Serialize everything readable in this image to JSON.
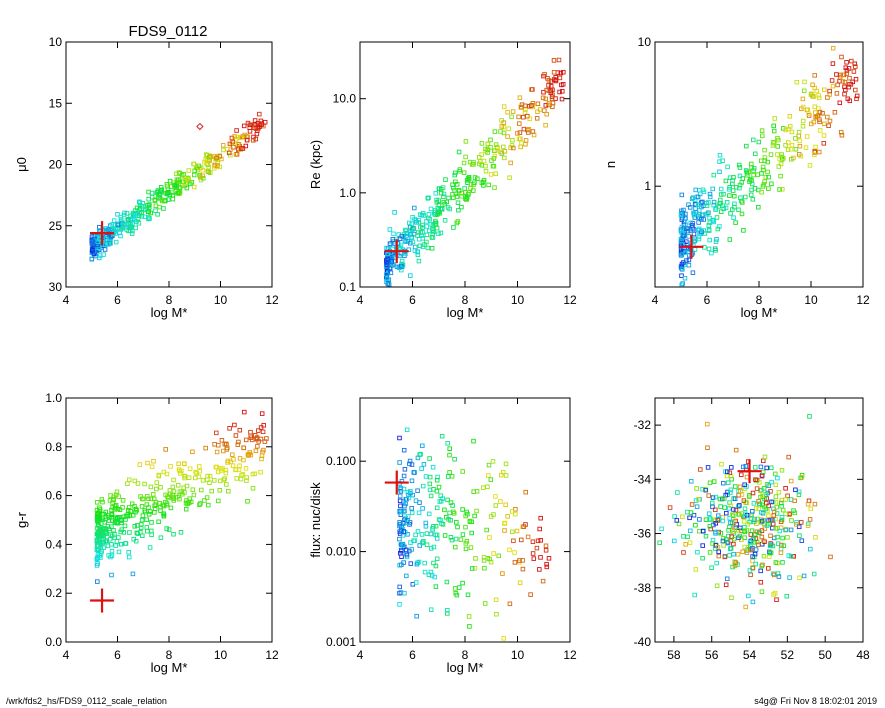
{
  "title": "FDS9_0112",
  "footer_left": "/wrk/fds2_hs/FDS9_0112_scale_relation",
  "footer_right": "s4g@  Fri Nov  8 18:02:01 2019",
  "colors": {
    "axis": "#000000",
    "marker": "#dd1111"
  },
  "chart_data": [
    {
      "id": "p1",
      "type": "scatter",
      "xlabel": "log M*",
      "ylabel": "μ0",
      "xlim": [
        4,
        12
      ],
      "ylim": [
        10,
        30
      ],
      "yreversed": true,
      "ylog": false,
      "xticks": [
        4,
        6,
        8,
        10,
        12
      ],
      "yticks": [
        10,
        15,
        20,
        25,
        30
      ],
      "marker": {
        "x": 5.4,
        "y": 25.6
      },
      "cluster": {
        "n": 420,
        "xr": [
          5.0,
          11.8
        ],
        "y0": 26.0,
        "slope": -1.5,
        "xref": 5.5,
        "spread": 1.4
      },
      "diamonds": [
        {
          "x": 9.2,
          "y": 16.9
        }
      ]
    },
    {
      "id": "p2",
      "type": "scatter",
      "xlabel": "log M*",
      "ylabel": "Re (kpc)",
      "xlim": [
        4,
        12
      ],
      "ylim": [
        0.1,
        40
      ],
      "ylog": true,
      "xticks": [
        4,
        6,
        8,
        10,
        12
      ],
      "yticks": [
        0.1,
        1.0,
        10.0
      ],
      "yticklabels": [
        "0.1",
        "1.0",
        "10.0"
      ],
      "marker": {
        "x": 5.4,
        "y": 0.24
      },
      "cluster": {
        "n": 420,
        "xr": [
          5.0,
          11.8
        ],
        "y0": -0.65,
        "slope": 0.3,
        "xref": 5.5,
        "spread": 0.45,
        "log": true
      }
    },
    {
      "id": "p3",
      "type": "scatter",
      "xlabel": "log M*",
      "ylabel": "n",
      "xlim": [
        4,
        12
      ],
      "ylim": [
        0.2,
        10
      ],
      "ylog": true,
      "xticks": [
        4,
        6,
        8,
        10,
        12
      ],
      "yticks": [
        1,
        10
      ],
      "yticklabels": [
        "1",
        "10"
      ],
      "marker": {
        "x": 5.4,
        "y": 0.38
      },
      "cluster": {
        "n": 400,
        "xr": [
          5.0,
          11.8
        ],
        "y0": -0.3,
        "slope": 0.17,
        "xref": 5.5,
        "spread": 0.4,
        "log": true
      }
    },
    {
      "id": "p4",
      "type": "scatter",
      "xlabel": "log M*",
      "ylabel": "g-r",
      "xlim": [
        4,
        12
      ],
      "ylim": [
        0.0,
        1.0
      ],
      "ylog": false,
      "xticks": [
        4,
        6,
        8,
        10,
        12
      ],
      "yticks": [
        0.0,
        0.2,
        0.4,
        0.6,
        0.8,
        1.0
      ],
      "yticklabels": [
        "0.0",
        "0.2",
        "0.4",
        "0.6",
        "0.8",
        "1.0"
      ],
      "marker": {
        "x": 5.4,
        "y": 0.17
      },
      "cluster": {
        "n": 420,
        "xr": [
          5.2,
          11.8
        ],
        "y0": 0.45,
        "slope": 0.055,
        "xref": 5.5,
        "spread": 0.22
      },
      "colorByY": true
    },
    {
      "id": "p5",
      "type": "scatter",
      "xlabel": "log M*",
      "ylabel": "flux: nuc/disk",
      "xlim": [
        4,
        12
      ],
      "ylim": [
        0.001,
        0.5
      ],
      "ylog": true,
      "xticks": [
        4,
        6,
        8,
        10,
        12
      ],
      "yticks": [
        0.001,
        0.01,
        0.1
      ],
      "yticklabels": [
        "0.001",
        "0.010",
        "0.100"
      ],
      "marker": {
        "x": 5.4,
        "y": 0.058
      },
      "cluster": {
        "n": 300,
        "xr": [
          5.5,
          11.2
        ],
        "y0": -1.6,
        "slope": -0.05,
        "xref": 5.5,
        "spread": 1.3,
        "log": true
      },
      "starsymbols": true
    },
    {
      "id": "p6",
      "type": "scatter",
      "xlabel": "",
      "ylabel": "",
      "xlim": [
        59,
        48
      ],
      "ylim": [
        -40,
        -31
      ],
      "ylog": false,
      "xticks": [
        58,
        56,
        54,
        52,
        50,
        48
      ],
      "yticks": [
        -40,
        -38,
        -36,
        -34,
        -32
      ],
      "marker": {
        "x": 54,
        "y": -33.7
      },
      "cluster": {
        "n": 420,
        "xr": [
          49.5,
          58.5
        ],
        "y0": -35.5,
        "slope": 0.0,
        "xref": 54,
        "spread": 2.5
      }
    }
  ]
}
